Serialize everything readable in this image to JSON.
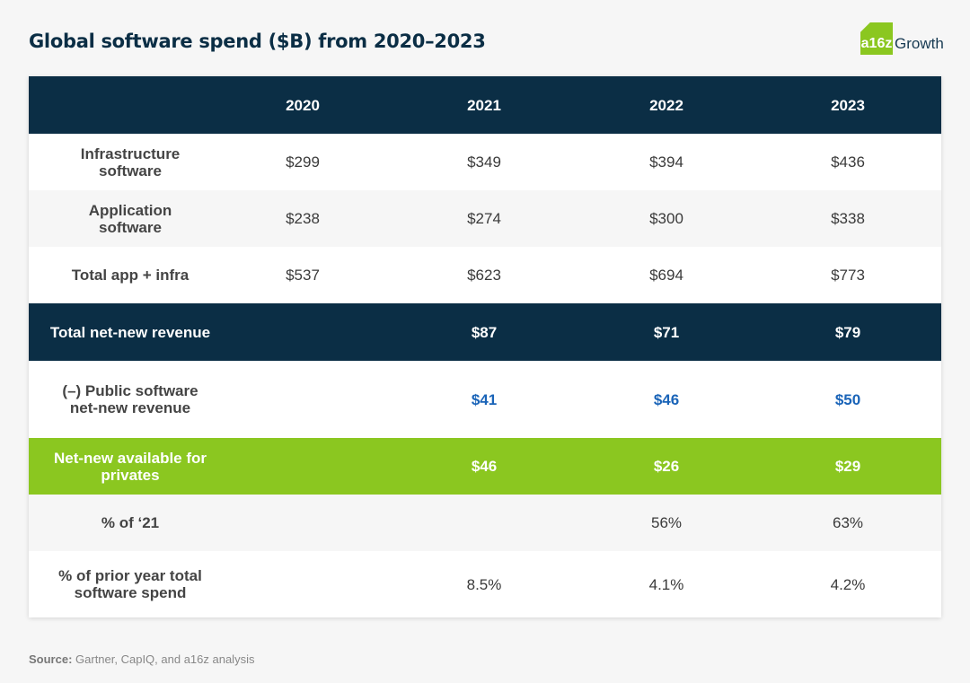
{
  "title": "Global software spend ($B) from 2020–2023",
  "logo": {
    "badge": "a16z",
    "word": "Growth"
  },
  "colors": {
    "navy": "#0b2e45",
    "green": "#8bc720",
    "blue": "#1a64b8"
  },
  "chart_data": {
    "type": "table",
    "title": "Global software spend ($B) from 2020–2023",
    "columns": [
      "",
      "2020",
      "2021",
      "2022",
      "2023"
    ],
    "rows": [
      {
        "label": "Infrastructure software",
        "label_lines": [
          "Infrastructure",
          "software"
        ],
        "values": [
          "$299",
          "$349",
          "$394",
          "$436"
        ]
      },
      {
        "label": "Application software",
        "label_lines": [
          "Application",
          "software"
        ],
        "values": [
          "$238",
          "$274",
          "$300",
          "$338"
        ]
      },
      {
        "label": "Total app + infra",
        "label_lines": [
          "Total app + infra"
        ],
        "values": [
          "$537",
          "$623",
          "$694",
          "$773"
        ]
      },
      {
        "label": "Total net-new revenue",
        "label_lines": [
          "Total net-new revenue"
        ],
        "values": [
          "",
          "$87",
          "$71",
          "$79"
        ]
      },
      {
        "label": "(–) Public software net-new revenue",
        "label_lines": [
          "(–) Public software",
          "net-new revenue"
        ],
        "values": [
          "",
          "$41",
          "$46",
          "$50"
        ]
      },
      {
        "label": "Net-new available for privates",
        "label_lines": [
          "Net-new available for",
          "privates"
        ],
        "values": [
          "",
          "$46",
          "$26",
          "$29"
        ]
      },
      {
        "label": "% of ‘21",
        "label_lines": [
          "% of ‘21"
        ],
        "values": [
          "",
          "",
          "56%",
          "63%"
        ]
      },
      {
        "label": "% of prior year total software spend",
        "label_lines": [
          "% of prior year total",
          "software spend"
        ],
        "values": [
          "",
          "8.5%",
          "4.1%",
          "4.2%"
        ]
      }
    ]
  },
  "source": {
    "label": "Source:",
    "text": " Gartner, CapIQ, and a16z analysis"
  }
}
